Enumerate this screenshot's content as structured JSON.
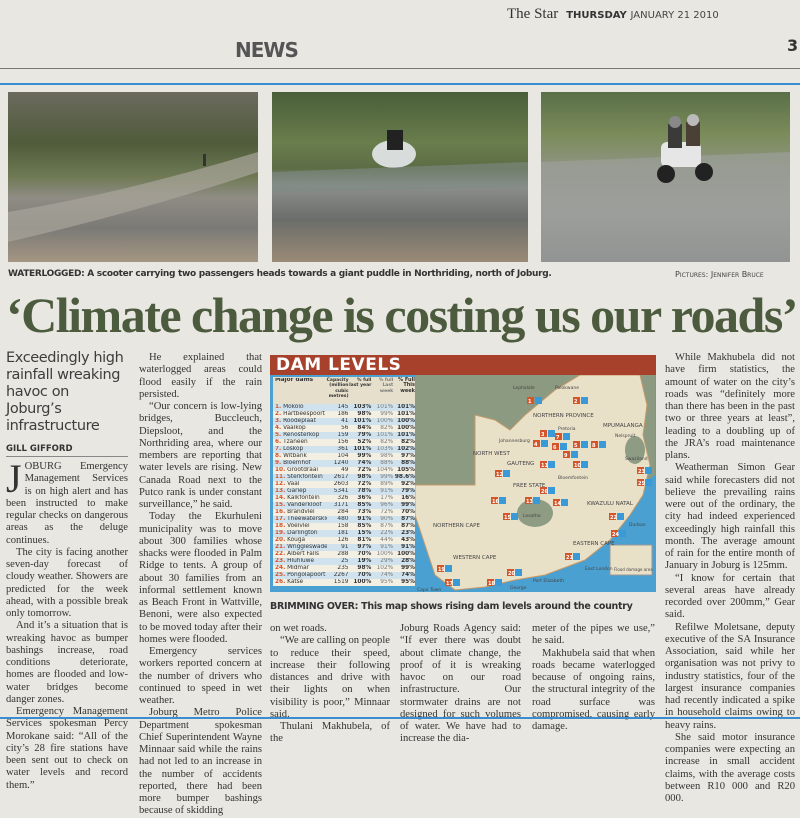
{
  "masthead": {
    "section": "NEWS",
    "paper": "The Star",
    "day": "THURSDAY",
    "date": "JANUARY 21 2010",
    "page": "3"
  },
  "photos": {
    "caption_label": "WATERLOGGED:",
    "caption": " A scooter carrying two passengers heads towards a giant puddle in Northriding, north of Joburg.",
    "credit": "Pictures: Jennifer Bruce"
  },
  "article": {
    "headline": "‘Climate change is costing us our roads’",
    "deck": "Exceedingly high rainfall wreaking havoc on Joburg’s infrastructure",
    "byline": "GILL GIFFORD",
    "drop_cap": "J",
    "col1": [
      "OBURG Emergency Management Services is on high alert and has been instructed to make regular checks on dangerous areas as the deluge continues.",
      "The city is facing another seven-day forecast of cloudy weather. Showers are predicted for the week ahead, with a possible break only tomorrow.",
      "And it’s a situation that is wreaking havoc as bumper bashings increase, road conditions deteriorate, homes are flooded and low-water bridges become danger zones.",
      "Emergency Management Services spokesman Percy Morokane said: “All of the city’s 28 fire stations have been sent out to check on water levels and record them.”"
    ],
    "col2": [
      "He explained that waterlogged areas could flood easily if the rain persisted.",
      "“Our concern is low-lying bridges, Buccleuch, Diepsloot, and the Northriding area, where our members are reporting that water levels are rising. New Canada Road next to the Putco rank is under constant surveillance,” he said.",
      "Today the Ekurhuleni municipality was to move about 300 families whose shacks were flooded in Palm Ridge to tents. A group of about 30 families from an informal settlement known as Beach Front in Wattville, Benoni, were also expected to be moved today after their homes were flooded.",
      "Emergency services workers reported concern at the number of drivers who continued to speed in wet weather.",
      "Joburg Metro Police Department spokesman Chief Superintendent Wayne Minnaar said while the rains had not led to an increase in the number of accidents reported, there had been more bumper bashings because of skidding"
    ],
    "col3": [
      "on wet roads.",
      "“We are calling on people to reduce their speed, increase their following distances and drive with their lights on when visibility is poor,” Minnaar said.",
      "Thulani Makhubela, of the"
    ],
    "col4": [
      "Joburg Roads Agency said: “If ever there was doubt about climate change, the proof of it is wreaking havoc on our road infrastructure. Our stormwater drains are not designed for such volumes of water. We have had to increase the dia-"
    ],
    "col5": [
      "meter of the pipes we use,” he said.",
      "Makhubela said that when roads became waterlogged because of ongoing rains, the structural integrity of the road surface was compromised, causing early damage."
    ],
    "col6": [
      "While Makhubela did not have firm statistics, the amount of water on the city’s roads was “definitely more than there has been in the past two or three years at least”, leading to a doubling up of the JRA’s road maintenance plans.",
      "Weatherman Simon Gear said while forecasters did not believe the prevailing rains were out of the ordinary, the city had indeed experienced exceedingly high rainfall this month. The average amount of rain for the entire month of January in Joburg is 125mm.",
      "“I know for certain that several areas have already recorded over 200mm,” Gear said.",
      "Refilwe Moletsane, deputy executive of the SA Insurance Association, said while her organisation was not privy to industry statistics, four of the largest insurance companies had recently indicated a spike in household claims owing to heavy rains.",
      "She said motor insurance companies were expecting an increase in small accident claims, with the average costs between R10 000 and R20 000."
    ]
  },
  "graphic": {
    "title": "DAM LEVELS",
    "caption": "BRIMMING OVER: This map shows rising dam levels around the country",
    "columns": [
      "Major dams",
      "Capacity (million cubic metres)",
      "% full last year",
      "% full Last week",
      "% Full This week"
    ],
    "dams": [
      [
        "1.",
        "Mokolo",
        "145",
        "103%",
        "101%",
        "101%"
      ],
      [
        "2.",
        "Hartbeespoort",
        "186",
        "98%",
        "99%",
        "101%"
      ],
      [
        "3.",
        "Roodeplaat",
        "41",
        "101%",
        "100%",
        "100%"
      ],
      [
        "4.",
        "Vaalkop",
        "56",
        "84%",
        "82%",
        "100%"
      ],
      [
        "5.",
        "Renosterkop",
        "159",
        "79%",
        "101%",
        "101%"
      ],
      [
        "6.",
        "Tzaneen",
        "156",
        "52%",
        "82%",
        "82%"
      ],
      [
        "7.",
        "Loskop",
        "361",
        "101%",
        "103%",
        "102%"
      ],
      [
        "8.",
        "Witbank",
        "104",
        "99%",
        "98%",
        "97%"
      ],
      [
        "9.",
        "Bloemhof",
        "1240",
        "74%",
        "88%",
        "88%"
      ],
      [
        "10.",
        "Grootdraai",
        "49",
        "72%",
        "104%",
        "105%"
      ],
      [
        "11.",
        "Sterkfontein",
        "2617",
        "98%",
        "99%",
        "98.6%"
      ],
      [
        "12.",
        "Vaal",
        "2603",
        "72%",
        "89%",
        "92%"
      ],
      [
        "13.",
        "Gariep",
        "5341",
        "78%",
        "91%",
        "79%"
      ],
      [
        "14.",
        "Kalkfontein",
        "326",
        "36%",
        "17%",
        "16%"
      ],
      [
        "15.",
        "Vanderkloof",
        "3171",
        "85%",
        "96%",
        "99%"
      ],
      [
        "16.",
        "Brandvlei",
        "284",
        "73%",
        "72%",
        "70%"
      ],
      [
        "17.",
        "Theewaterskloof",
        "480",
        "91%",
        "90%",
        "87%"
      ],
      [
        "18.",
        "Voelvlei",
        "158",
        "85%",
        "87%",
        "87%"
      ],
      [
        "19.",
        "Darlington",
        "181",
        "15%",
        "22%",
        "23%"
      ],
      [
        "20.",
        "Kouga",
        "126",
        "81%",
        "44%",
        "43%"
      ],
      [
        "21.",
        "Wriggleswade",
        "91",
        "97%",
        "91%",
        "91%"
      ],
      [
        "22.",
        "Albert Falls",
        "288",
        "70%",
        "100%",
        "100%"
      ],
      [
        "23.",
        "Hluhluwe",
        "25",
        "19%",
        "29%",
        "28%"
      ],
      [
        "24.",
        "Midmar",
        "235",
        "98%",
        "102%",
        "99%"
      ],
      [
        "25.",
        "Pongolapoort",
        "2267",
        "70%",
        "74%",
        "74%"
      ],
      [
        "26.",
        "Katse",
        "1519",
        "100%",
        "95%",
        "95%"
      ]
    ],
    "map_labels": {
      "provinces": [
        "NORTHERN PROVINCE",
        "MPUMALANGA",
        "NORTH WEST",
        "GAUTENG",
        "FREE STATE",
        "KWAZULU NATAL",
        "NORTHERN CAPE",
        "EASTERN CAPE",
        "WESTERN CAPE"
      ],
      "cities": [
        "Lephalale",
        "Polokwane",
        "Nelspruit",
        "Pretoria",
        "Johannesburg",
        "Bloemfontein",
        "Lesotho",
        "Swaziland",
        "Durban",
        "East London",
        "Port Elizabeth",
        "George",
        "Cape Town"
      ],
      "legend": "Flood damage area"
    },
    "colors": {
      "title_bar": "#a8412b",
      "sea": "#4aa0d0",
      "land": "#e9e0c8",
      "marker_red": "#d4552a",
      "marker_blue": "#3a9ad8"
    }
  }
}
